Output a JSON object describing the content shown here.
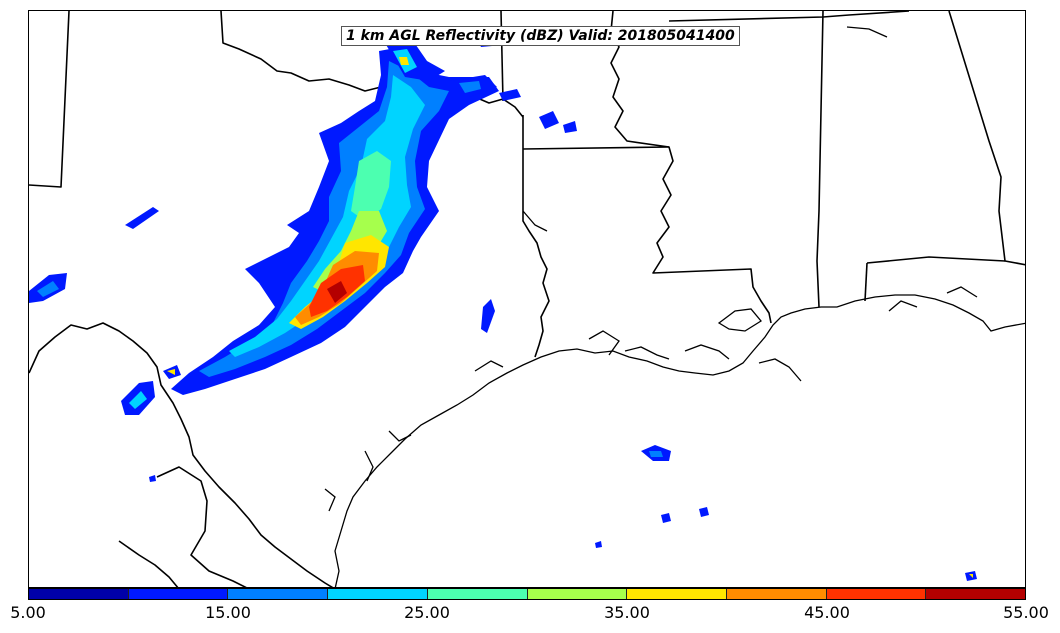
{
  "map": {
    "title": "1 km AGL Reflectivity (dBZ) Valid: 201805041400",
    "variable": "reflectivity",
    "units": "dBZ",
    "level": "1 km AGL",
    "valid_time": "201805041400"
  },
  "colorbar": {
    "min": 5.0,
    "max": 55.0,
    "step": 5.0,
    "tick_labels": [
      "5.00",
      "15.00",
      "25.00",
      "35.00",
      "45.00",
      "55.00"
    ],
    "colors": [
      "#0000a8",
      "#0019ff",
      "#0080ff",
      "#00d4ff",
      "#4cffb0",
      "#a6ff4c",
      "#ffe600",
      "#ff8c00",
      "#ff3200",
      "#b40000"
    ]
  }
}
